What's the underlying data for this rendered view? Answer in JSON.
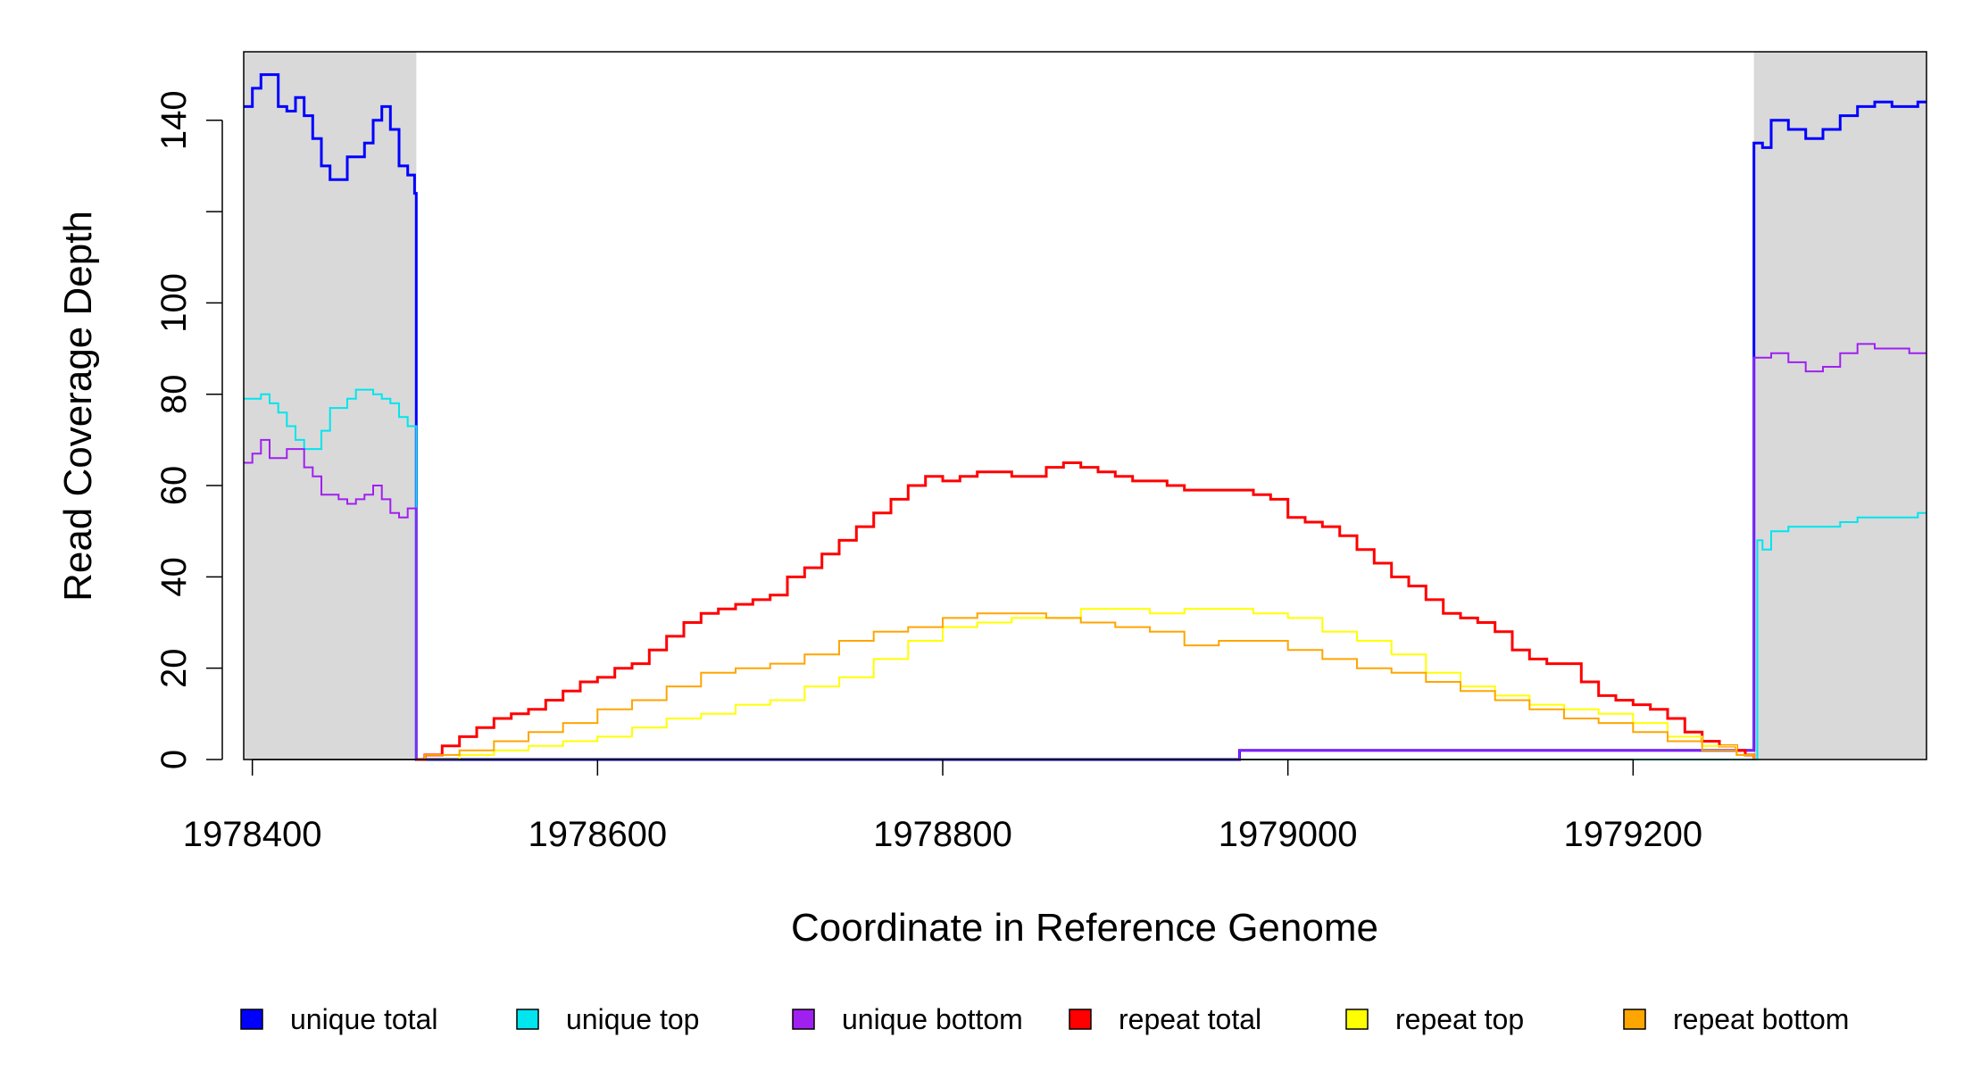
{
  "chart_data": {
    "type": "line",
    "title": "",
    "xlabel": "Coordinate in Reference Genome",
    "ylabel": "Read Coverage Depth",
    "xlim": [
      1978395,
      1979370
    ],
    "ylim": [
      0,
      155
    ],
    "x_ticks": [
      1978400,
      1978600,
      1978800,
      1979000,
      1979200
    ],
    "x_tick_labels": [
      "1978400",
      "1978600",
      "1978800",
      "1979000",
      "1979200"
    ],
    "y_ticks": [
      0,
      20,
      40,
      60,
      80,
      100,
      120,
      140
    ],
    "y_tick_labels": [
      "0",
      "20",
      "40",
      "60",
      "80",
      "100",
      "",
      "140"
    ],
    "grid": false,
    "legend_position": "bottom",
    "colors": {
      "shade": "#d9d9d9",
      "unique_total": "#0000ff",
      "unique_top": "#00e5ee",
      "unique_bottom": "#a020f0",
      "repeat_total": "#ff0000",
      "repeat_top": "#ffff00",
      "repeat_bottom": "#ffa500"
    },
    "shaded_regions": [
      [
        1978395,
        1978495
      ],
      [
        1979270,
        1979370
      ]
    ],
    "series": [
      {
        "name": "unique total",
        "color": "#0000ff",
        "width": 3,
        "x": [
          1978395,
          1978400,
          1978405,
          1978410,
          1978415,
          1978420,
          1978425,
          1978430,
          1978435,
          1978440,
          1978445,
          1978450,
          1978455,
          1978460,
          1978465,
          1978470,
          1978475,
          1978480,
          1978485,
          1978490,
          1978494,
          1978495,
          1978500,
          1978600,
          1978700,
          1978800,
          1978900,
          1978970,
          1978972,
          1979000,
          1979100,
          1979200,
          1979268,
          1979270,
          1979275,
          1979280,
          1979290,
          1979300,
          1979310,
          1979320,
          1979330,
          1979340,
          1979350,
          1979360,
          1979365,
          1979370
        ],
        "y": [
          143,
          147,
          150,
          150,
          143,
          142,
          145,
          141,
          136,
          130,
          127,
          127,
          132,
          132,
          135,
          140,
          143,
          138,
          130,
          128,
          124,
          0,
          0,
          0,
          0,
          0,
          0,
          0,
          2,
          2,
          2,
          2,
          2,
          135,
          134,
          140,
          138,
          136,
          138,
          141,
          143,
          144,
          143,
          143,
          144,
          144
        ]
      },
      {
        "name": "unique top",
        "color": "#00e5ee",
        "width": 2,
        "x": [
          1978395,
          1978400,
          1978405,
          1978410,
          1978415,
          1978420,
          1978425,
          1978430,
          1978435,
          1978440,
          1978445,
          1978450,
          1978455,
          1978460,
          1978465,
          1978470,
          1978475,
          1978480,
          1978485,
          1978490,
          1978494,
          1978495,
          1979270,
          1979272,
          1979275,
          1979280,
          1979290,
          1979300,
          1979310,
          1979320,
          1979330,
          1979340,
          1979350,
          1979360,
          1979365,
          1979370
        ],
        "y": [
          79,
          79,
          80,
          78,
          76,
          73,
          70,
          68,
          68,
          72,
          77,
          77,
          79,
          81,
          81,
          80,
          79,
          78,
          75,
          73,
          73,
          0,
          0,
          48,
          46,
          50,
          51,
          51,
          51,
          52,
          53,
          53,
          53,
          53,
          54,
          54
        ]
      },
      {
        "name": "unique bottom",
        "color": "#a020f0",
        "width": 2,
        "x": [
          1978395,
          1978400,
          1978405,
          1978410,
          1978415,
          1978420,
          1978425,
          1978430,
          1978435,
          1978440,
          1978445,
          1978450,
          1978455,
          1978460,
          1978465,
          1978470,
          1978475,
          1978480,
          1978485,
          1978490,
          1978494,
          1978495,
          1978500,
          1978600,
          1978700,
          1978800,
          1978900,
          1978970,
          1978972,
          1979000,
          1979100,
          1979200,
          1979268,
          1979270,
          1979275,
          1979280,
          1979290,
          1979300,
          1979310,
          1979320,
          1979330,
          1979340,
          1979350,
          1979360,
          1979365,
          1979370
        ],
        "y": [
          65,
          67,
          70,
          66,
          66,
          68,
          68,
          64,
          62,
          58,
          58,
          57,
          56,
          57,
          58,
          60,
          57,
          54,
          53,
          55,
          55,
          0,
          0,
          0,
          0,
          0,
          0,
          0,
          2,
          2,
          2,
          2,
          2,
          88,
          88,
          89,
          87,
          85,
          86,
          89,
          91,
          90,
          90,
          89,
          89,
          89
        ]
      },
      {
        "name": "repeat total",
        "color": "#ff0000",
        "width": 3,
        "x": [
          1978495,
          1978500,
          1978510,
          1978520,
          1978530,
          1978540,
          1978550,
          1978560,
          1978570,
          1978580,
          1978590,
          1978600,
          1978610,
          1978620,
          1978630,
          1978640,
          1978650,
          1978660,
          1978670,
          1978680,
          1978690,
          1978700,
          1978710,
          1978720,
          1978730,
          1978740,
          1978750,
          1978760,
          1978770,
          1978780,
          1978790,
          1978800,
          1978810,
          1978820,
          1978830,
          1978840,
          1978850,
          1978860,
          1978870,
          1978880,
          1978890,
          1978900,
          1978910,
          1978920,
          1978930,
          1978940,
          1978950,
          1978960,
          1978970,
          1978980,
          1978990,
          1979000,
          1979010,
          1979020,
          1979030,
          1979040,
          1979050,
          1979060,
          1979070,
          1979080,
          1979090,
          1979100,
          1979110,
          1979120,
          1979130,
          1979140,
          1979150,
          1979160,
          1979170,
          1979180,
          1979190,
          1979200,
          1979210,
          1979220,
          1979230,
          1979240,
          1979250,
          1979260,
          1979265,
          1979270
        ],
        "y": [
          0,
          1,
          3,
          5,
          7,
          9,
          10,
          11,
          13,
          15,
          17,
          18,
          20,
          21,
          24,
          27,
          30,
          32,
          33,
          34,
          35,
          36,
          40,
          42,
          45,
          48,
          51,
          54,
          57,
          60,
          62,
          61,
          62,
          63,
          63,
          62,
          62,
          64,
          65,
          64,
          63,
          62,
          61,
          61,
          60,
          59,
          59,
          59,
          59,
          58,
          57,
          53,
          52,
          51,
          49,
          46,
          43,
          40,
          38,
          35,
          32,
          31,
          30,
          28,
          24,
          22,
          21,
          21,
          17,
          14,
          13,
          12,
          11,
          9,
          6,
          4,
          3,
          2,
          1,
          0
        ]
      },
      {
        "name": "repeat top",
        "color": "#ffff00",
        "width": 2,
        "x": [
          1978495,
          1978500,
          1978520,
          1978540,
          1978560,
          1978580,
          1978600,
          1978620,
          1978640,
          1978660,
          1978680,
          1978700,
          1978720,
          1978740,
          1978760,
          1978780,
          1978800,
          1978820,
          1978840,
          1978860,
          1978880,
          1978900,
          1978920,
          1978940,
          1978960,
          1978980,
          1979000,
          1979020,
          1979040,
          1979060,
          1979080,
          1979100,
          1979120,
          1979140,
          1979160,
          1979180,
          1979200,
          1979220,
          1979240,
          1979260,
          1979270
        ],
        "y": [
          0,
          0,
          1,
          2,
          3,
          4,
          5,
          7,
          9,
          10,
          12,
          13,
          16,
          18,
          22,
          26,
          29,
          30,
          31,
          31,
          33,
          33,
          32,
          33,
          33,
          32,
          31,
          28,
          26,
          23,
          19,
          16,
          14,
          12,
          11,
          10,
          8,
          5,
          3,
          1,
          0
        ]
      },
      {
        "name": "repeat bottom",
        "color": "#ffa500",
        "width": 2,
        "x": [
          1978495,
          1978500,
          1978520,
          1978540,
          1978560,
          1978580,
          1978600,
          1978620,
          1978640,
          1978660,
          1978680,
          1978700,
          1978720,
          1978740,
          1978760,
          1978780,
          1978800,
          1978820,
          1978840,
          1978860,
          1978880,
          1978900,
          1978920,
          1978940,
          1978960,
          1978980,
          1979000,
          1979020,
          1979040,
          1979060,
          1979080,
          1979100,
          1979120,
          1979140,
          1979160,
          1979180,
          1979200,
          1979220,
          1979240,
          1979260,
          1979270
        ],
        "y": [
          0,
          1,
          2,
          4,
          6,
          8,
          11,
          13,
          16,
          19,
          20,
          21,
          23,
          26,
          28,
          29,
          31,
          32,
          32,
          31,
          30,
          29,
          28,
          25,
          26,
          26,
          24,
          22,
          20,
          19,
          17,
          15,
          13,
          11,
          9,
          8,
          6,
          4,
          2,
          1,
          0
        ]
      }
    ]
  }
}
